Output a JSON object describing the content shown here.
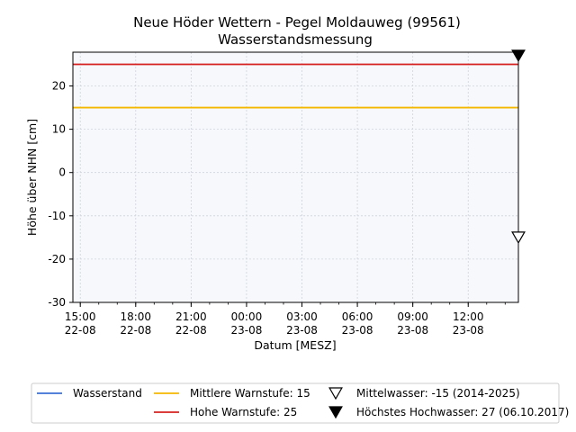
{
  "chart_data": {
    "type": "line",
    "title": "Neue Höder Wettern - Pegel Moldauweg (99561)",
    "subtitle": "Wasserstandsmessung",
    "xlabel": "Datum [MESZ]",
    "ylabel": "Höhe über NHN [cm]",
    "ylim": [
      -30,
      27.8
    ],
    "xlim": [
      "2025-08-22 14:36",
      "2025-08-23 14:43"
    ],
    "yticks": [
      -30,
      -20,
      -10,
      0,
      10,
      20
    ],
    "xticks": [
      {
        "time": "2025-08-22 15:00",
        "line1": "15:00",
        "line2": "22-08"
      },
      {
        "time": "2025-08-22 18:00",
        "line1": "18:00",
        "line2": "22-08"
      },
      {
        "time": "2025-08-22 21:00",
        "line1": "21:00",
        "line2": "22-08"
      },
      {
        "time": "2025-08-23 00:00",
        "line1": "00:00",
        "line2": "23-08"
      },
      {
        "time": "2025-08-23 03:00",
        "line1": "03:00",
        "line2": "23-08"
      },
      {
        "time": "2025-08-23 06:00",
        "line1": "06:00",
        "line2": "23-08"
      },
      {
        "time": "2025-08-23 09:00",
        "line1": "09:00",
        "line2": "23-08"
      },
      {
        "time": "2025-08-23 12:00",
        "line1": "12:00",
        "line2": "23-08"
      }
    ],
    "grid": true,
    "legend_position": "bottom",
    "series": [
      {
        "name": "Wasserstand",
        "color": "#3b6fd4",
        "values": []
      },
      {
        "name": "Mittlere Warnstufe: 15",
        "color": "#f5b800",
        "y": 15
      },
      {
        "name": "Hohe Warnstufe: 25",
        "color": "#d62020",
        "y": 25
      }
    ],
    "markers": [
      {
        "name": "Mittelwasser: -15 (2014-2025)",
        "y": -15,
        "style": "open-triangle-down"
      },
      {
        "name": "Höchstes Hochwasser: 27 (06.10.2017)",
        "y": 27,
        "style": "filled-triangle-down"
      }
    ]
  }
}
